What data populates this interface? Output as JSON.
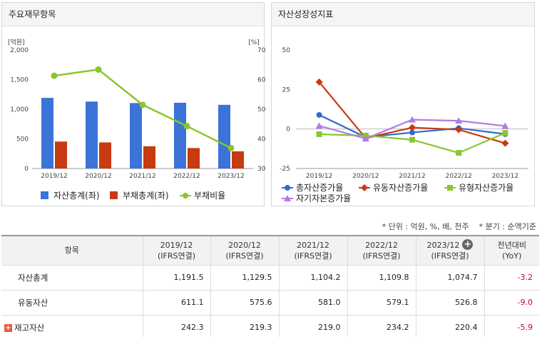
{
  "left_panel": {
    "title": "주요재무항목"
  },
  "right_panel": {
    "title": "자산성장성지표"
  },
  "chart_data": [
    {
      "type": "bar",
      "title": "",
      "categories": [
        "2019/12",
        "2020/12",
        "2021/12",
        "2022/12",
        "2023/12"
      ],
      "left_axis": {
        "label": "[억원]",
        "range": [
          0,
          2000
        ],
        "ticks": [
          "0",
          "500",
          "1,000",
          "1,500",
          "2,000"
        ]
      },
      "right_axis": {
        "label": "[%]",
        "range": [
          30,
          70
        ],
        "ticks": [
          "30",
          "40",
          "50",
          "60",
          "70"
        ]
      },
      "series": [
        {
          "name": "자산총계(좌)",
          "type": "bar",
          "axis": "left",
          "color": "#3b73d8",
          "values": [
            1191.5,
            1129.5,
            1104.2,
            1109.8,
            1074.7
          ]
        },
        {
          "name": "부채총계(좌)",
          "type": "bar",
          "axis": "left",
          "color": "#c83a10",
          "values": [
            455,
            440,
            375,
            345,
            290
          ]
        },
        {
          "name": "부채비율",
          "type": "line",
          "axis": "right",
          "color": "#8bc62e",
          "values": [
            61.3,
            63.4,
            51.5,
            44.3,
            36.9
          ]
        }
      ],
      "legend": "bottom",
      "grid": false
    },
    {
      "type": "line",
      "title": "",
      "categories": [
        "2019/12",
        "2020/12",
        "2021/12",
        "2022/12",
        "2023/12"
      ],
      "y_axis": {
        "range": [
          -25,
          50
        ],
        "ticks": [
          "-25",
          "0",
          "25",
          "50"
        ]
      },
      "series": [
        {
          "name": "총자산증가율",
          "color": "#2e6bd3",
          "marker": "circle",
          "values": [
            8.9,
            -5.2,
            -2.2,
            0.5,
            -3.2
          ]
        },
        {
          "name": "유동자산증가율",
          "color": "#c83a10",
          "marker": "diamond",
          "values": [
            29.7,
            -5.8,
            0.9,
            -0.4,
            -9.0
          ]
        },
        {
          "name": "유형자산증가율",
          "color": "#8bc62e",
          "marker": "square",
          "values": [
            -3.3,
            -4.2,
            -6.8,
            -15.1,
            -2.5
          ]
        },
        {
          "name": "자기자본증가율",
          "color": "#b07ee0",
          "marker": "triangle",
          "values": [
            2.0,
            -6.1,
            5.9,
            5.2,
            1.9
          ]
        }
      ],
      "legend": "bottom",
      "grid": false
    }
  ],
  "notes": {
    "unit": "* 단위 : 억원, %, 배, 천주",
    "period": "* 분기 : 순액기준"
  },
  "table": {
    "headers": [
      {
        "line1": "항목",
        "line2": ""
      },
      {
        "line1": "2019/12",
        "line2": "(IFRS연결)"
      },
      {
        "line1": "2020/12",
        "line2": "(IFRS연결)"
      },
      {
        "line1": "2021/12",
        "line2": "(IFRS연결)"
      },
      {
        "line1": "2022/12",
        "line2": "(IFRS연결)"
      },
      {
        "line1": "2023/12",
        "line2": "(IFRS연결)"
      },
      {
        "line1": "전년대비",
        "line2": "(YoY)"
      }
    ],
    "rows": [
      {
        "label": "자산총계",
        "expandable": false,
        "values": [
          "1,191.5",
          "1,129.5",
          "1,104.2",
          "1,109.8",
          "1,074.7"
        ],
        "yoy": "-3.2"
      },
      {
        "label": "유동자산",
        "expandable": false,
        "values": [
          "611.1",
          "575.6",
          "581.0",
          "579.1",
          "526.8"
        ],
        "yoy": "-9.0"
      },
      {
        "label": "재고자산",
        "expandable": true,
        "values": [
          "242.3",
          "219.3",
          "219.0",
          "234.2",
          "220.4"
        ],
        "yoy": "-5.9"
      }
    ]
  }
}
